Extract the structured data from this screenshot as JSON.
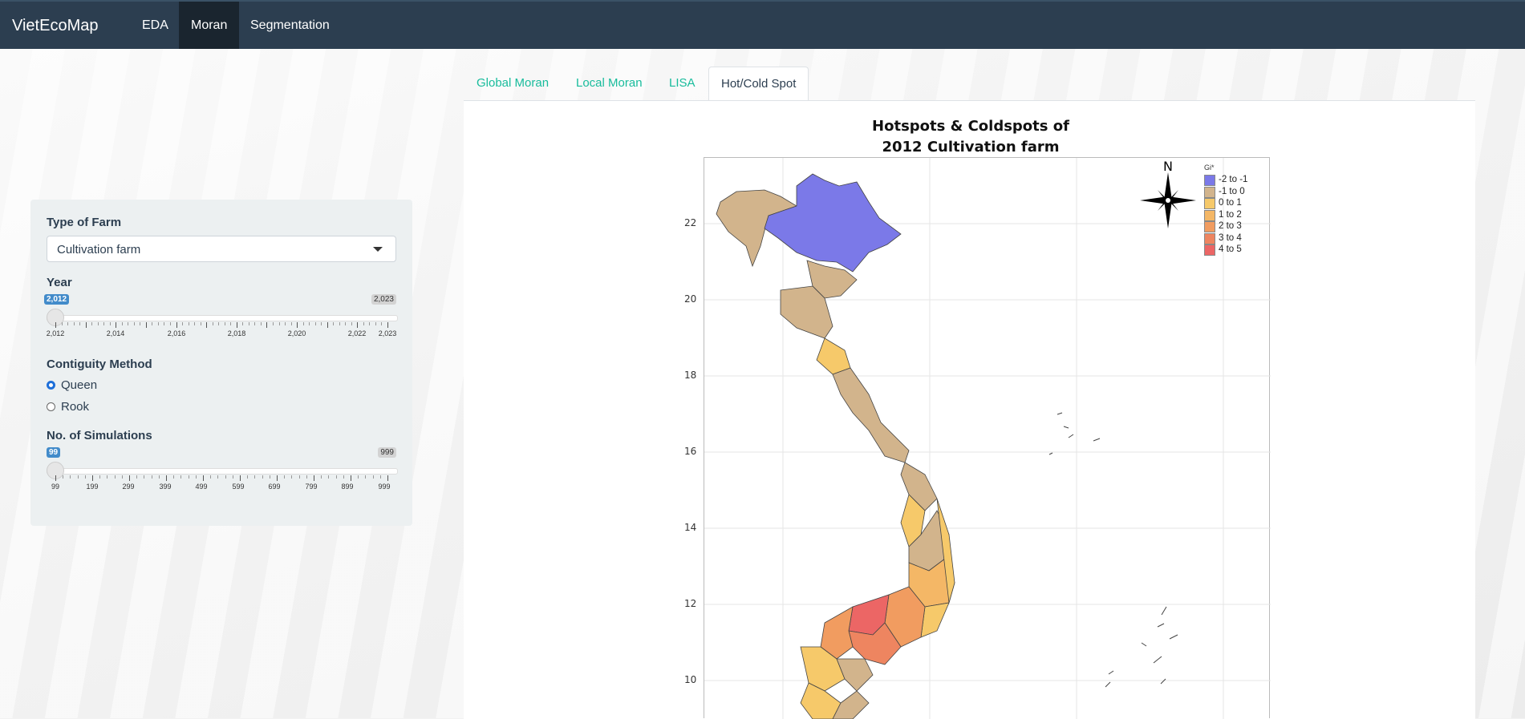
{
  "navbar": {
    "brand": "VietEcoMap",
    "items": [
      {
        "label": "EDA"
      },
      {
        "label": "Moran"
      },
      {
        "label": "Segmentation"
      }
    ]
  },
  "sidebar": {
    "farm_type": {
      "label": "Type of Farm",
      "value": "Cultivation farm"
    },
    "year": {
      "label": "Year",
      "min_badge": "2,012",
      "max_badge": "2,023",
      "ticks": [
        "2,012",
        "2,014",
        "2,016",
        "2,018",
        "2,020",
        "2,022",
        "2,023"
      ]
    },
    "contiguity": {
      "label": "Contiguity Method",
      "options": [
        "Queen",
        "Rook"
      ],
      "selected": "Queen"
    },
    "simulations": {
      "label": "No. of Simulations",
      "min_badge": "99",
      "max_badge": "999",
      "ticks": [
        "99",
        "199",
        "299",
        "399",
        "499",
        "599",
        "699",
        "799",
        "899",
        "999"
      ]
    }
  },
  "tabs": [
    {
      "label": "Global Moran"
    },
    {
      "label": "Local Moran"
    },
    {
      "label": "LISA"
    },
    {
      "label": "Hot/Cold Spot"
    }
  ],
  "map": {
    "title_line1": "Hotspots & Coldspots of",
    "title_line2": "2012 Cultivation farm",
    "north": "N",
    "y_ticks": [
      "22",
      "20",
      "18",
      "16",
      "14",
      "12",
      "10"
    ],
    "legend": {
      "title": "Gi*",
      "items": [
        {
          "label": "-2 to -1",
          "color": "#7b79e8"
        },
        {
          "label": "-1 to 0",
          "color": "#d2b48c"
        },
        {
          "label": "0 to 1",
          "color": "#f6c96a"
        },
        {
          "label": "1 to 2",
          "color": "#f4b766"
        },
        {
          "label": "2 to 3",
          "color": "#f19c60"
        },
        {
          "label": "3 to 4",
          "color": "#ee8560"
        },
        {
          "label": "4 to 5",
          "color": "#ec6665"
        }
      ]
    }
  }
}
